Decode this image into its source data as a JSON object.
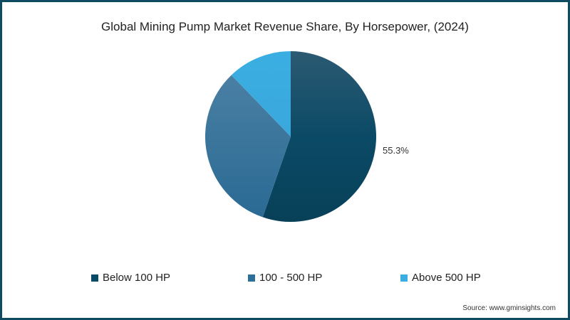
{
  "chart_data": {
    "type": "pie",
    "title": "Global Mining Pump Market Revenue Share, By Horsepower, (2024)",
    "categories": [
      "Below 100 HP",
      "100 - 500 HP",
      "Above 500 HP"
    ],
    "values": [
      55.3,
      32.5,
      12.2
    ],
    "colors": [
      "#0b4a66",
      "#2e6f98",
      "#3aaee2"
    ],
    "labels_shown": [
      "55.3%"
    ],
    "legend_position": "bottom",
    "source": "Source: www.gminsights.com"
  },
  "title": "Global Mining Pump Market Revenue Share, By Horsepower, (2024)",
  "pct_label": "55.3%",
  "legend": [
    {
      "label": "Below 100 HP",
      "color": "#0b4a66"
    },
    {
      "label": "100 - 500 HP",
      "color": "#2e6f98"
    },
    {
      "label": "Above 500 HP",
      "color": "#3aaee2"
    }
  ],
  "source": "Source: www.gminsights.com"
}
